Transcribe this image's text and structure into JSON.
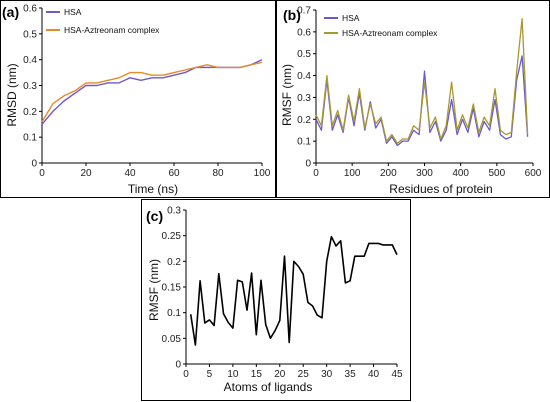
{
  "chart_data": [
    {
      "panel": "(a)",
      "type": "line",
      "xlabel": "Time (ns)",
      "ylabel": "RMSD (nm)",
      "xlim": [
        0,
        100
      ],
      "ylim": [
        0,
        0.6
      ],
      "xticks": [
        "0",
        "20",
        "40",
        "60",
        "80",
        "100"
      ],
      "yticks": [
        "0",
        "0.1",
        "0.2",
        "0.3",
        "0.4",
        "0.5",
        "0.6"
      ],
      "legend": "top-left",
      "series": [
        {
          "name": "HSA",
          "color": "#6a5acd",
          "x": [
            0,
            5,
            10,
            15,
            20,
            25,
            30,
            35,
            40,
            45,
            50,
            55,
            60,
            65,
            70,
            75,
            80,
            85,
            90,
            95,
            100
          ],
          "y": [
            0.15,
            0.2,
            0.24,
            0.27,
            0.3,
            0.3,
            0.31,
            0.31,
            0.33,
            0.32,
            0.33,
            0.33,
            0.34,
            0.35,
            0.37,
            0.37,
            0.37,
            0.37,
            0.37,
            0.38,
            0.4
          ]
        },
        {
          "name": "HSA-Aztreonam complex",
          "color": "#e8892b",
          "x": [
            0,
            5,
            10,
            15,
            20,
            25,
            30,
            35,
            40,
            45,
            50,
            55,
            60,
            65,
            70,
            75,
            80,
            85,
            90,
            95,
            100
          ],
          "y": [
            0.16,
            0.23,
            0.26,
            0.28,
            0.31,
            0.31,
            0.32,
            0.33,
            0.35,
            0.35,
            0.34,
            0.34,
            0.35,
            0.36,
            0.37,
            0.38,
            0.37,
            0.37,
            0.37,
            0.38,
            0.39
          ]
        }
      ]
    },
    {
      "panel": "(b)",
      "type": "line",
      "xlabel": "Residues of protein",
      "ylabel": "RMSF (nm)",
      "xlim": [
        0,
        600
      ],
      "ylim": [
        0,
        0.7
      ],
      "xticks": [
        "0",
        "100",
        "200",
        "300",
        "400",
        "500",
        "600"
      ],
      "yticks": [
        "0",
        "0.1",
        "0.2",
        "0.3",
        "0.4",
        "0.5",
        "0.6",
        "0.7"
      ],
      "legend": "top-left",
      "series": [
        {
          "name": "HSA",
          "color": "#6a5acd",
          "x": [
            0,
            15,
            30,
            45,
            60,
            75,
            90,
            105,
            120,
            135,
            150,
            165,
            180,
            195,
            210,
            225,
            240,
            255,
            270,
            285,
            300,
            315,
            330,
            345,
            360,
            375,
            390,
            405,
            420,
            435,
            450,
            465,
            480,
            495,
            510,
            525,
            540,
            555,
            570,
            585
          ],
          "y": [
            0.2,
            0.15,
            0.38,
            0.15,
            0.22,
            0.14,
            0.3,
            0.17,
            0.32,
            0.15,
            0.28,
            0.16,
            0.2,
            0.09,
            0.12,
            0.08,
            0.1,
            0.1,
            0.15,
            0.13,
            0.42,
            0.14,
            0.19,
            0.1,
            0.15,
            0.29,
            0.13,
            0.2,
            0.14,
            0.25,
            0.12,
            0.19,
            0.15,
            0.29,
            0.13,
            0.11,
            0.12,
            0.38,
            0.49,
            0.12
          ]
        },
        {
          "name": "HSA-Aztreonam complex",
          "color": "#a89830",
          "x": [
            0,
            15,
            30,
            45,
            60,
            75,
            90,
            105,
            120,
            135,
            150,
            165,
            180,
            195,
            210,
            225,
            240,
            255,
            270,
            285,
            300,
            315,
            330,
            345,
            360,
            375,
            390,
            405,
            420,
            435,
            450,
            465,
            480,
            495,
            510,
            525,
            540,
            555,
            570,
            585
          ],
          "y": [
            0.22,
            0.17,
            0.4,
            0.17,
            0.24,
            0.15,
            0.31,
            0.19,
            0.34,
            0.16,
            0.27,
            0.18,
            0.21,
            0.1,
            0.13,
            0.09,
            0.11,
            0.11,
            0.17,
            0.15,
            0.37,
            0.16,
            0.21,
            0.11,
            0.17,
            0.37,
            0.15,
            0.22,
            0.16,
            0.27,
            0.14,
            0.21,
            0.17,
            0.34,
            0.15,
            0.13,
            0.14,
            0.42,
            0.66,
            0.13
          ]
        }
      ]
    },
    {
      "panel": "(c)",
      "type": "line",
      "xlabel": "Atoms of ligands",
      "ylabel": "RMSF (nm)",
      "xlim": [
        0,
        45
      ],
      "ylim": [
        0,
        0.3
      ],
      "xticks": [
        "0",
        "5",
        "10",
        "15",
        "20",
        "25",
        "30",
        "35",
        "40",
        "45"
      ],
      "yticks": [
        "0",
        "0.05",
        "0.1",
        "0.15",
        "0.2",
        "0.25",
        "0.3"
      ],
      "series": [
        {
          "color": "#000000",
          "x": [
            1,
            2,
            3,
            4,
            5,
            6,
            7,
            8,
            9,
            10,
            11,
            12,
            13,
            14,
            15,
            16,
            17,
            18,
            19,
            20,
            21,
            22,
            23,
            24,
            25,
            26,
            27,
            28,
            29,
            30,
            31,
            32,
            33,
            34,
            35,
            36,
            37,
            38,
            39,
            40,
            41,
            42,
            43,
            44,
            45
          ],
          "y": [
            0.097,
            0.037,
            0.162,
            0.08,
            0.086,
            0.075,
            0.176,
            0.098,
            0.081,
            0.07,
            0.163,
            0.16,
            0.105,
            0.177,
            0.057,
            0.163,
            0.077,
            0.05,
            0.065,
            0.085,
            0.21,
            0.042,
            0.2,
            0.19,
            0.175,
            0.12,
            0.113,
            0.095,
            0.09,
            0.2,
            0.248,
            0.23,
            0.24,
            0.158,
            0.162,
            0.21,
            0.21,
            0.21,
            0.235,
            0.235,
            0.235,
            0.232,
            0.232,
            0.232,
            0.213
          ]
        }
      ]
    }
  ]
}
